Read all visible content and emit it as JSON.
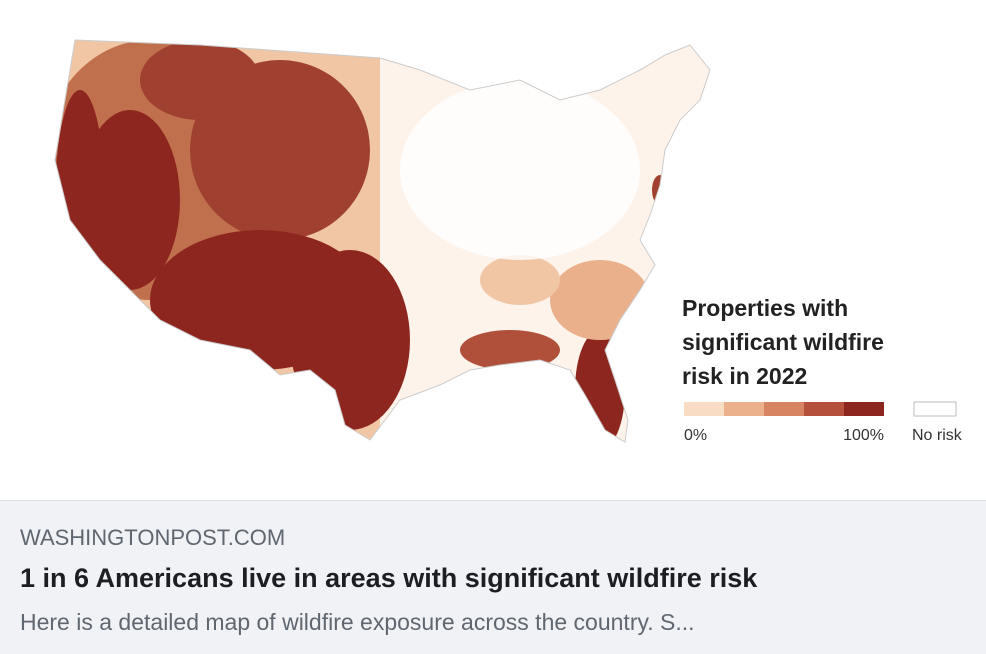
{
  "map": {
    "legend": {
      "title_lines": [
        "Properties with",
        "significant wildfire",
        "risk in 2022"
      ],
      "min_label": "0%",
      "max_label": "100%",
      "none_label": "No risk"
    }
  },
  "link": {
    "site": "WASHINGTONPOST.COM",
    "headline": "1 in 6 Americans live in areas with significant wildfire risk",
    "description": "Here is a detailed map of wildfire exposure across the country. S..."
  }
}
